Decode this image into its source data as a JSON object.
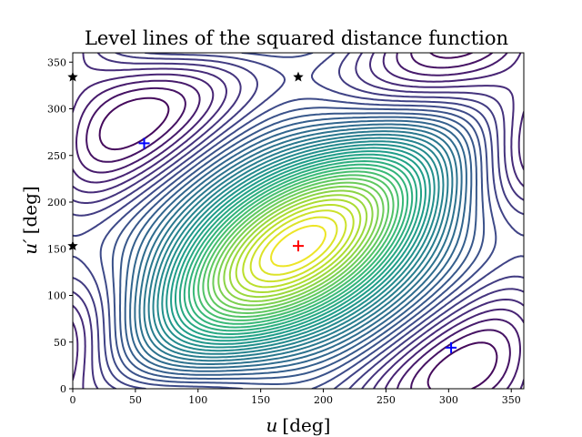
{
  "chart_data": {
    "type": "contour",
    "title": "Level lines of the squared distance function",
    "xlabel": {
      "var": "u",
      "unit": "[deg]"
    },
    "ylabel": {
      "var": "u′",
      "unit": "[deg]"
    },
    "xlim": [
      0,
      360
    ],
    "ylim": [
      0,
      360
    ],
    "xticks": [
      0,
      50,
      100,
      150,
      200,
      250,
      300,
      350
    ],
    "yticks": [
      0,
      50,
      100,
      150,
      200,
      250,
      300,
      350
    ],
    "colormap": "viridis",
    "grid": false,
    "markers": [
      {
        "kind": "maximum",
        "symbol": "+",
        "color": "#ff0000",
        "x": 180,
        "y": 153
      },
      {
        "kind": "minimum",
        "symbol": "+",
        "color": "#0000ff",
        "x": 57,
        "y": 263
      },
      {
        "kind": "minimum",
        "symbol": "+",
        "color": "#0000ff",
        "x": 302,
        "y": 44
      },
      {
        "kind": "saddle",
        "symbol": "star",
        "color": "#000000",
        "x": 180,
        "y": 334
      },
      {
        "kind": "saddle",
        "symbol": "star",
        "color": "#000000",
        "x": 0,
        "y": 334
      },
      {
        "kind": "saddle",
        "symbol": "star",
        "color": "#000000",
        "x": 0,
        "y": 153
      }
    ]
  }
}
